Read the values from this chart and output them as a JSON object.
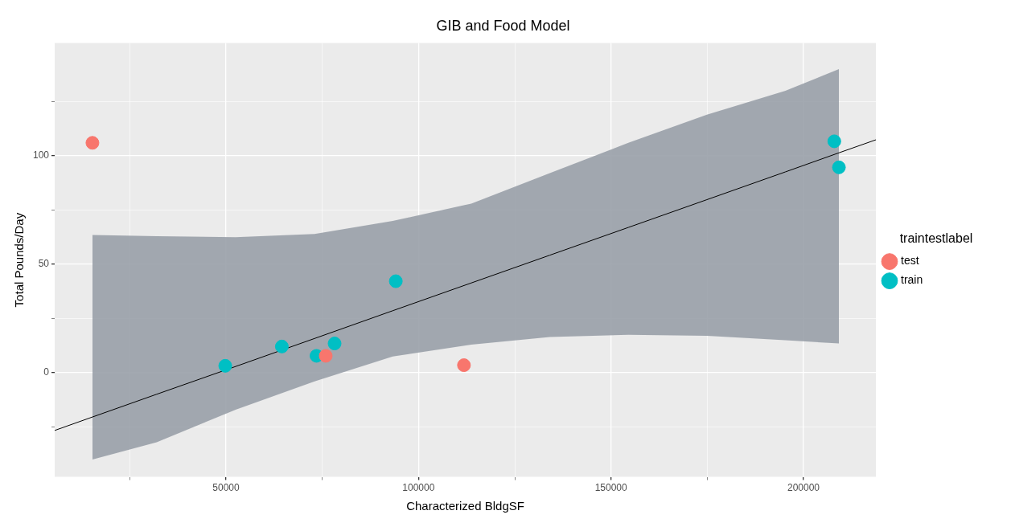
{
  "chart_data": {
    "type": "scatter",
    "title": "GIB and Food Model",
    "xlabel": "Characterized BldgSF",
    "ylabel": "Total Pounds/Day",
    "legend_title": "traintestlabel",
    "xlim": [
      5500,
      218800
    ],
    "ylim": [
      -48,
      152
    ],
    "xticks": [
      {
        "value": 25000,
        "label": null
      },
      50000,
      {
        "value": 75000,
        "label": null
      },
      100000,
      {
        "value": 125000,
        "label": null
      },
      150000,
      {
        "value": 175000,
        "label": null
      },
      200000
    ],
    "yticks": [
      {
        "value": -25,
        "label": null
      },
      0,
      {
        "value": 25,
        "label": null
      },
      50,
      {
        "value": 75,
        "label": null
      },
      100,
      {
        "value": 125,
        "label": null
      }
    ],
    "grid": true,
    "legend": "right",
    "marker": "circle",
    "series": [
      {
        "type": "line",
        "marker": "none",
        "color": "#000000",
        "x": [
          5500,
          15300,
          32000,
          52500,
          73000,
          93300,
          113700,
          134100,
          154500,
          174900,
          195300,
          209200,
          218800
        ],
        "values": [
          -26.6,
          -20.4,
          -9.9,
          2.9,
          15.8,
          28.6,
          41.4,
          54.2,
          67.0,
          79.8,
          92.6,
          101.4,
          107.4
        ],
        "lower": [
          null,
          -40,
          -32,
          -17,
          -4,
          7.5,
          13,
          16.5,
          17.5,
          17,
          15,
          13.5,
          null
        ],
        "upper": [
          null,
          63.5,
          63,
          62.5,
          64,
          70,
          78,
          92,
          106,
          119,
          130,
          140,
          null
        ]
      },
      {
        "name": "test",
        "color": "#f8766d",
        "x": [
          15300,
          75900,
          111800
        ],
        "values": [
          106,
          7.8,
          3.5
        ]
      },
      {
        "name": "train",
        "color": "#00bfc4",
        "x": [
          49800,
          64500,
          73500,
          78200,
          94100,
          208000,
          209200
        ],
        "values": [
          3.2,
          12.1,
          7.8,
          13.5,
          42.2,
          106.7,
          94.7
        ]
      }
    ]
  }
}
